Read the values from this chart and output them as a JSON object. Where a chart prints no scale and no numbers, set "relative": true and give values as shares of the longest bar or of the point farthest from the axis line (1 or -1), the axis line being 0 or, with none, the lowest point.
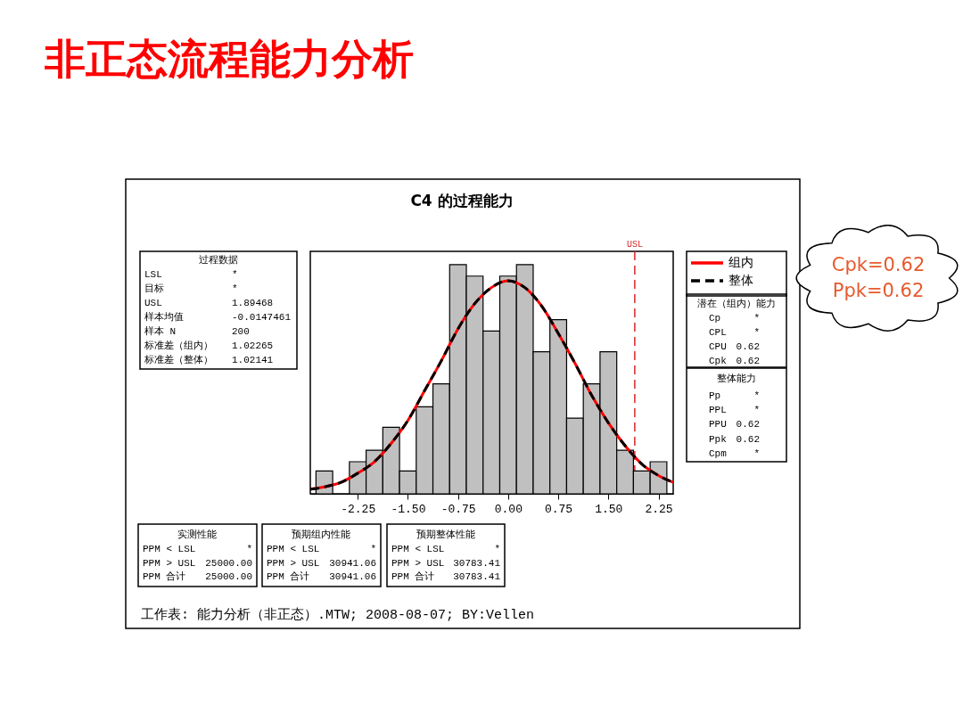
{
  "chart_data": {
    "type": "histogram",
    "title": "非正态流程能力分析",
    "subtitle": "C4 的过程能力",
    "relative": true,
    "bins": [
      -2.875,
      -2.625,
      -2.375,
      -2.125,
      -1.875,
      -1.625,
      -1.375,
      -1.125,
      -0.875,
      -0.625,
      -0.375,
      -0.125,
      0.125,
      0.375,
      0.625,
      0.875,
      1.125,
      1.375,
      1.625,
      1.875,
      2.125,
      2.375
    ],
    "values": [
      0.1,
      0,
      0.14,
      0.19,
      0.29,
      0.1,
      0.38,
      0.48,
      1,
      0.95,
      0.71,
      0.95,
      1,
      0.62,
      0.76,
      0.33,
      0.48,
      0.62,
      0.19,
      0.1,
      0.14
    ],
    "color": "#c0c0c0",
    "series": [
      {
        "name": "组内",
        "type": "line",
        "color": "#ff0000",
        "line_style": "solid",
        "x": [
          -2.96,
          -2.75,
          -2.5,
          -2.25,
          -2,
          -1.75,
          -1.5,
          -1.25,
          -1,
          -0.75,
          -0.5,
          -0.25,
          0,
          0.25,
          0.5,
          0.75,
          1,
          1.25,
          1.5,
          1.75,
          2,
          2.25,
          2.47
        ],
        "values": [
          0.02,
          0.03,
          0.05,
          0.09,
          0.14,
          0.22,
          0.32,
          0.45,
          0.58,
          0.72,
          0.83,
          0.9,
          0.93,
          0.9,
          0.82,
          0.7,
          0.57,
          0.43,
          0.31,
          0.21,
          0.13,
          0.08,
          0.05
        ]
      },
      {
        "name": "整体",
        "type": "line",
        "color": "#000000",
        "line_style": "dashed",
        "x": [
          -2.96,
          -2.75,
          -2.5,
          -2.25,
          -2,
          -1.75,
          -1.5,
          -1.25,
          -1,
          -0.75,
          -0.5,
          -0.25,
          0,
          0.25,
          0.5,
          0.75,
          1,
          1.25,
          1.5,
          1.75,
          2,
          2.25,
          2.47
        ],
        "values": [
          0.02,
          0.03,
          0.05,
          0.09,
          0.14,
          0.22,
          0.32,
          0.45,
          0.58,
          0.72,
          0.83,
          0.9,
          0.93,
          0.9,
          0.82,
          0.7,
          0.57,
          0.43,
          0.31,
          0.21,
          0.13,
          0.08,
          0.05
        ]
      }
    ],
    "xlim": [
      -2.96,
      2.47
    ],
    "xticks": [
      -2.25,
      {
        "value": -1.5,
        "label": "-1.50"
      },
      -0.75,
      {
        "value": 0,
        "label": "0.00"
      },
      0.75,
      {
        "value": 1.5,
        "label": "1.50"
      },
      2.25
    ],
    "ref_lines": [
      {
        "axis": "x",
        "value": 1.89468,
        "label": "USL",
        "color": "#d62728",
        "line_style": "dashed"
      }
    ],
    "legend": "top right",
    "annotations": [
      "过程数据",
      "LSL",
      "*",
      "目标",
      "*",
      "USL",
      "1.89468",
      "样本均值",
      "-0.0147461",
      "样本 N",
      "200",
      "标准差（组内）",
      "1.02265",
      "标准差（整体）",
      "1.02141",
      "潜在（组内）能力",
      "Cp",
      "*",
      "CPL",
      "*",
      "CPU",
      "0.62",
      "Cpk",
      "0.62",
      "整体能力",
      "Pp",
      "*",
      "PPL",
      "*",
      "PPU",
      "0.62",
      "Ppk",
      "0.62",
      "Cpm",
      "*",
      "实测性能",
      "PPM < LSL",
      "*",
      "PPM > USL",
      "25000.00",
      "PPM 合计",
      "25000.00",
      "预期组内性能",
      "PPM < LSL",
      "*",
      "PPM > USL",
      "30941.06",
      "PPM 合计",
      "30941.06",
      "预期整体性能",
      "PPM < LSL",
      "*",
      "PPM > USL",
      "30783.41",
      "PPM 合计",
      "30783.41",
      "工作表: 能力分析（非正态）.MTW; 2008-08-07; BY:Vellen",
      "Cpk=0.62",
      "Ppk=0.62"
    ]
  }
}
